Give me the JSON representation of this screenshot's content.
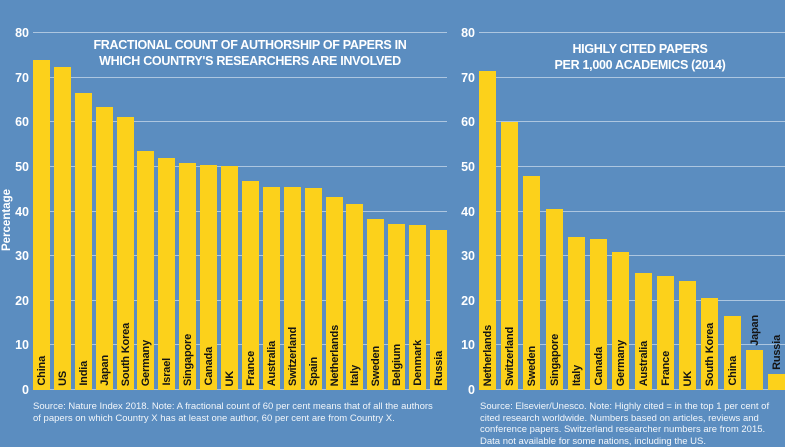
{
  "page": {
    "background_color": "#5b8dc0",
    "bar_color": "#fcd11b",
    "grid_color": "rgba(255,255,255,0.5)",
    "title_color": "#ffffff",
    "axis_text_color": "#ffffff",
    "bar_label_color": "#141414",
    "source_text_color": "rgba(255,255,255,0.92)"
  },
  "chart_data": [
    {
      "type": "bar",
      "title": "FRACTIONAL COUNT OF AUTHORSHIP OF PAPERS IN WHICH COUNTRY'S RESEARCHERS ARE INVOLVED",
      "title_lines": [
        "FRACTIONAL COUNT OF AUTHORSHIP OF PAPERS IN",
        "WHICH COUNTRY'S RESEARCHERS ARE INVOLVED"
      ],
      "xlabel": "",
      "ylabel": "Percentage",
      "ylim": [
        0,
        80
      ],
      "yticks": [
        0,
        10,
        20,
        30,
        40,
        50,
        60,
        70,
        80
      ],
      "grid": true,
      "legend": "none",
      "categories": [
        "China",
        "US",
        "India",
        "Japan",
        "South Korea",
        "Germany",
        "Israel",
        "Singapore",
        "Canada",
        "UK",
        "France",
        "Australia",
        "Switzerland",
        "Spain",
        "Netherlands",
        "Italy",
        "Sweden",
        "Belgium",
        "Denmark",
        "Russia"
      ],
      "values": [
        74.0,
        72.3,
        66.5,
        63.5,
        61.2,
        53.5,
        52.0,
        50.9,
        50.4,
        50.2,
        46.8,
        45.5,
        45.4,
        45.2,
        43.2,
        41.8,
        38.4,
        37.3,
        36.9,
        35.8
      ],
      "source": "Source: Nature Index 2018. Note: A fractional count of 60 per cent means that of all the authors of papers on which Country X has at least one author, 60 per cent are from Country X."
    },
    {
      "type": "bar",
      "title": "HIGHLY CITED PAPERS PER 1,000 ACADEMICS (2014)",
      "title_lines": [
        "HIGHLY CITED PAPERS",
        "PER 1,000 ACADEMICS (2014)"
      ],
      "xlabel": "",
      "ylabel": "",
      "ylim": [
        0,
        80
      ],
      "yticks": [
        0,
        10,
        20,
        30,
        40,
        50,
        60,
        70,
        80
      ],
      "grid": true,
      "legend": "none",
      "categories": [
        "Netherlands",
        "Switzerland",
        "Sweden",
        "Singapore",
        "Italy",
        "Canada",
        "Germany",
        "Australia",
        "France",
        "UK",
        "South Korea",
        "China",
        "Japan",
        "Russia"
      ],
      "values": [
        71.6,
        60.1,
        48.0,
        40.5,
        34.4,
        33.8,
        31.0,
        26.2,
        25.5,
        24.5,
        20.6,
        16.5,
        9.0,
        3.6
      ],
      "source": "Source: Elsevier/Unesco. Note: Highly cited = in the top 1 per cent of cited research worldwide. Numbers based on articles, reviews and conference papers. Switzerland researcher numbers are from 2015. Data not available for some nations, including the US."
    }
  ]
}
